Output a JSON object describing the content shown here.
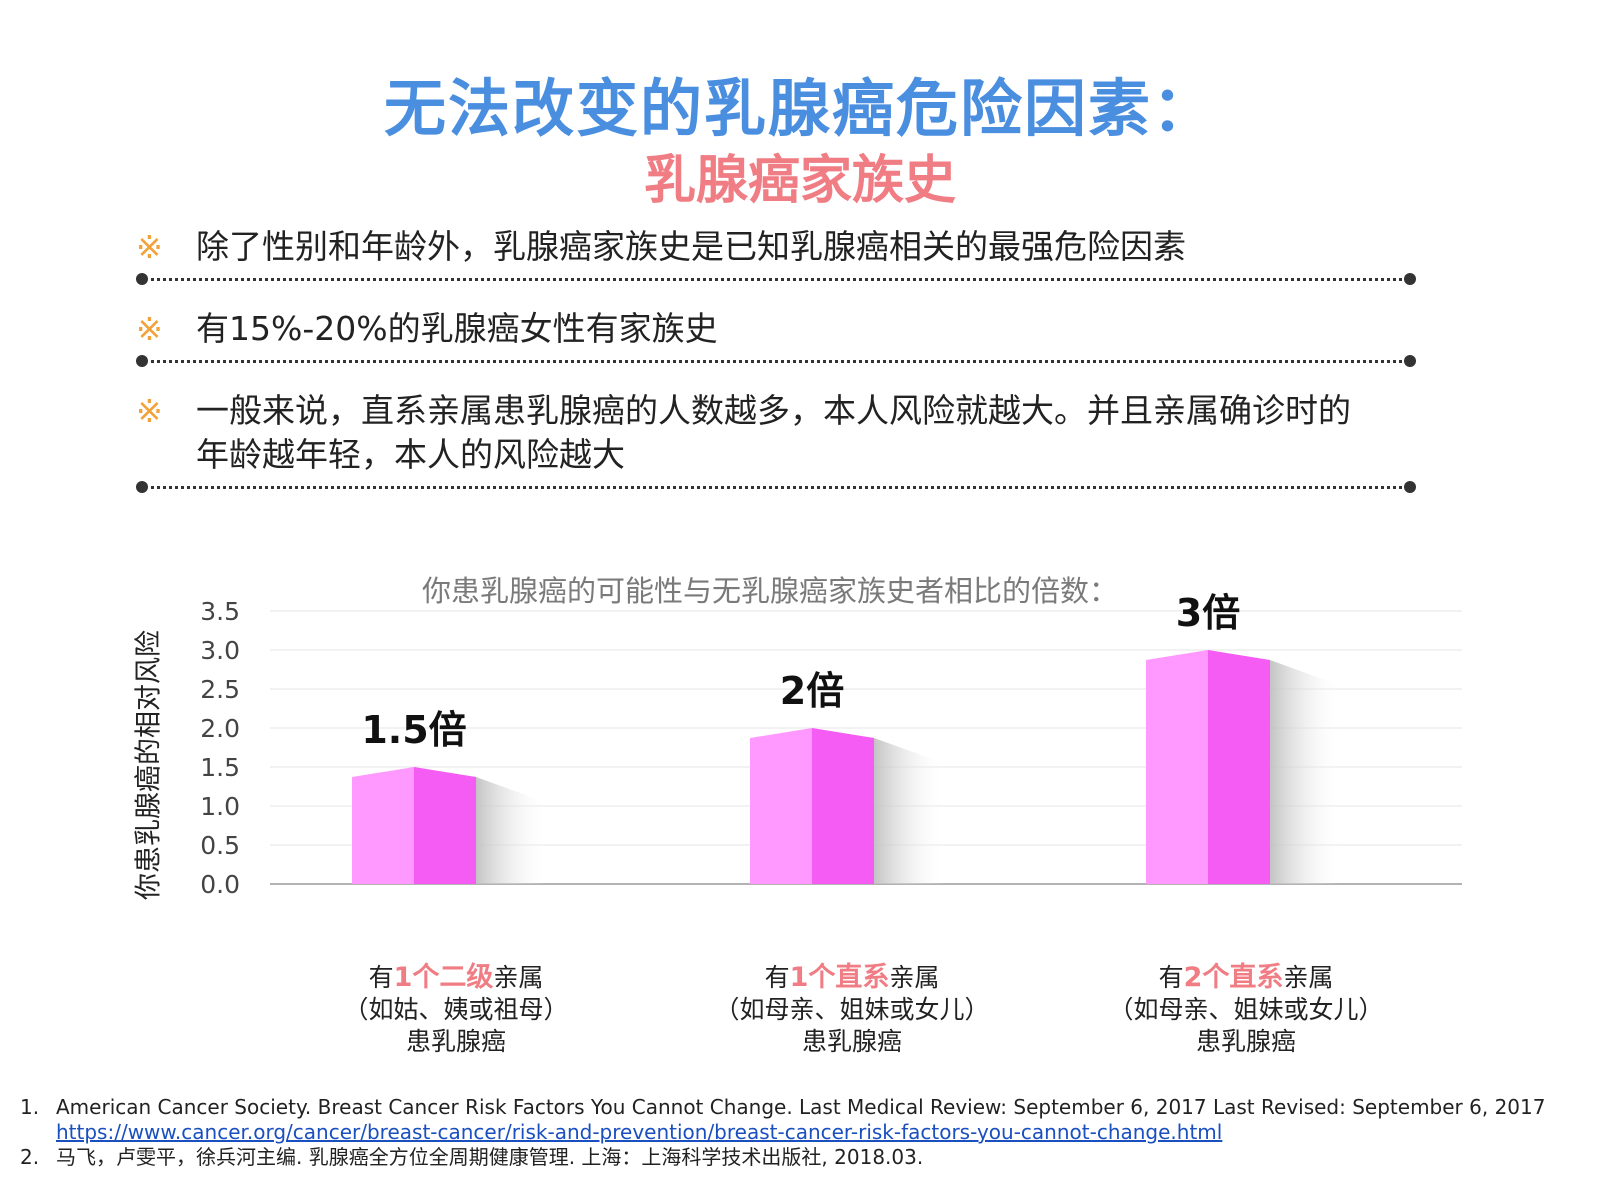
{
  "header": {
    "title": "无法改变的乳腺癌危险因素：",
    "subtitle": "乳腺癌家族史"
  },
  "bullets": {
    "mark": "※",
    "items": [
      "除了性别和年龄外，乳腺癌家族史是已知乳腺癌相关的最强危险因素",
      "有15%-20%的乳腺癌女性有家族史",
      "一般来说，直系亲属患乳腺癌的人数越多，本人风险就越大。并且亲属确诊时的年龄越年轻，本人的风险越大"
    ]
  },
  "chart_data": {
    "type": "bar",
    "title": "你患乳腺癌的可能性与无乳腺癌家族史者相比的倍数：",
    "ylabel": "你患乳腺癌的相对风险",
    "ylim": [
      0,
      3.5
    ],
    "yticks": [
      "0.0",
      "0.5",
      "1.0",
      "1.5",
      "2.0",
      "2.5",
      "3.0",
      "3.5"
    ],
    "values": [
      1.5,
      2.0,
      3.0
    ],
    "data_labels": [
      "1.5倍",
      "2倍",
      "3倍"
    ],
    "categories": [
      {
        "pre": "有",
        "highlight": "1个二级",
        "post": "亲属",
        "line2": "（如姑、姨或祖母）",
        "line3": "患乳腺癌"
      },
      {
        "pre": "有",
        "highlight": "1个直系",
        "post": "亲属",
        "line2": "（如母亲、姐妹或女儿）",
        "line3": "患乳腺癌"
      },
      {
        "pre": "有",
        "highlight": "2个直系",
        "post": "亲属",
        "line2": "（如母亲、姐妹或女儿）",
        "line3": "患乳腺癌"
      }
    ],
    "colors": {
      "bar_light": "#ff99ff",
      "bar_dark": "#f45cf4",
      "grid": "#e6e6e6",
      "axis": "#9a9a9a"
    },
    "grid": true
  },
  "references": [
    {
      "num": "1.",
      "text": "American Cancer Society. Breast Cancer Risk Factors You Cannot Change. Last Medical Review: September 6, 2017 Last Revised: September 6, 2017",
      "link": "https://www.cancer.org/cancer/breast-cancer/risk-and-prevention/breast-cancer-risk-factors-you-cannot-change.html"
    },
    {
      "num": "2.",
      "text": "马飞，卢雯平，徐兵河主编. 乳腺癌全方位全周期健康管理. 上海：上海科学技术出版社, 2018.03."
    }
  ]
}
